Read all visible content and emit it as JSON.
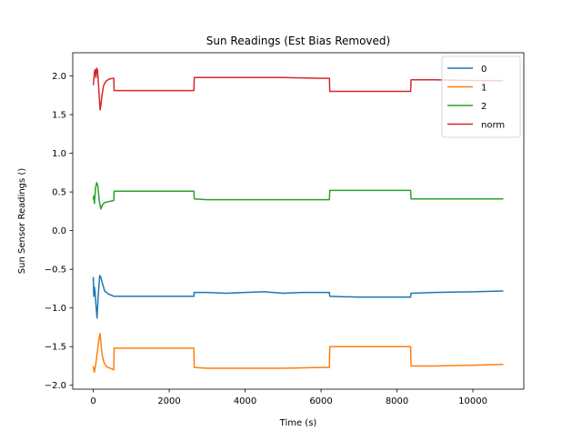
{
  "chart_data": {
    "type": "line",
    "title": "Sun Readings (Est Bias Removed)",
    "xlabel": "Time (s)",
    "ylabel": "Sun Sensor Readings ()",
    "xlim": [
      -540,
      11340
    ],
    "ylim": [
      -2.05,
      2.3
    ],
    "xticks": [
      0,
      2000,
      4000,
      6000,
      8000,
      10000
    ],
    "xtick_labels": [
      "0",
      "2000",
      "4000",
      "6000",
      "8000",
      "10000"
    ],
    "yticks": [
      -2.0,
      -1.5,
      -1.0,
      -0.5,
      0.0,
      0.5,
      1.0,
      1.5,
      2.0
    ],
    "ytick_labels": [
      "−2.0",
      "−1.5",
      "−1.0",
      "−0.5",
      "0.0",
      "0.5",
      "1.0",
      "1.5",
      "2.0"
    ],
    "grid": false,
    "legend_position": "top-right",
    "series": [
      {
        "name": "0",
        "color": "#1f77b4",
        "x": [
          0,
          15,
          30,
          50,
          70,
          100,
          130,
          170,
          200,
          240,
          300,
          400,
          500,
          540,
          560,
          1000,
          2000,
          2650,
          2660,
          3000,
          3500,
          4000,
          4500,
          5000,
          5500,
          6000,
          6220,
          6230,
          7000,
          8000,
          8360,
          8370,
          9000,
          10000,
          10800
        ],
        "y": [
          -0.6,
          -0.85,
          -0.73,
          -0.8,
          -0.95,
          -1.13,
          -0.85,
          -0.58,
          -0.6,
          -0.68,
          -0.78,
          -0.82,
          -0.84,
          -0.85,
          -0.85,
          -0.85,
          -0.85,
          -0.85,
          -0.8,
          -0.8,
          -0.81,
          -0.8,
          -0.79,
          -0.81,
          -0.8,
          -0.8,
          -0.8,
          -0.85,
          -0.86,
          -0.86,
          -0.86,
          -0.81,
          -0.8,
          -0.79,
          -0.78
        ]
      },
      {
        "name": "1",
        "color": "#ff7f0e",
        "x": [
          0,
          15,
          30,
          60,
          100,
          150,
          180,
          210,
          240,
          280,
          350,
          450,
          540,
          550,
          1000,
          2000,
          2650,
          2660,
          3000,
          4000,
          5000,
          6000,
          6220,
          6230,
          7000,
          8000,
          8360,
          8370,
          9000,
          10000,
          10800
        ],
        "y": [
          -1.75,
          -1.8,
          -1.83,
          -1.75,
          -1.6,
          -1.4,
          -1.33,
          -1.5,
          -1.62,
          -1.7,
          -1.76,
          -1.78,
          -1.8,
          -1.52,
          -1.52,
          -1.52,
          -1.52,
          -1.77,
          -1.78,
          -1.78,
          -1.78,
          -1.77,
          -1.77,
          -1.5,
          -1.5,
          -1.5,
          -1.5,
          -1.75,
          -1.75,
          -1.74,
          -1.73
        ]
      },
      {
        "name": "2",
        "color": "#2ca02c",
        "x": [
          0,
          15,
          30,
          60,
          90,
          120,
          160,
          200,
          240,
          290,
          350,
          450,
          540,
          550,
          1000,
          2000,
          2650,
          2660,
          3000,
          4000,
          5000,
          6000,
          6220,
          6230,
          7000,
          8000,
          8360,
          8370,
          9000,
          10000,
          10800
        ],
        "y": [
          0.4,
          0.45,
          0.35,
          0.55,
          0.62,
          0.58,
          0.38,
          0.28,
          0.33,
          0.36,
          0.37,
          0.38,
          0.39,
          0.51,
          0.51,
          0.51,
          0.51,
          0.41,
          0.4,
          0.4,
          0.4,
          0.4,
          0.4,
          0.52,
          0.52,
          0.52,
          0.52,
          0.41,
          0.41,
          0.41,
          0.41
        ]
      },
      {
        "name": "norm",
        "color": "#d62728",
        "x": [
          0,
          15,
          30,
          50,
          70,
          90,
          110,
          130,
          150,
          180,
          200,
          230,
          270,
          330,
          420,
          540,
          550,
          1000,
          2000,
          2650,
          2660,
          3000,
          4000,
          5000,
          6000,
          6220,
          6230,
          7000,
          8000,
          8360,
          8370,
          9000,
          10000,
          10800
        ],
        "y": [
          1.88,
          1.95,
          2.05,
          2.08,
          1.98,
          2.1,
          2.08,
          1.95,
          1.8,
          1.56,
          1.62,
          1.75,
          1.87,
          1.93,
          1.96,
          1.97,
          1.81,
          1.81,
          1.81,
          1.81,
          1.98,
          1.98,
          1.98,
          1.98,
          1.97,
          1.97,
          1.8,
          1.8,
          1.8,
          1.8,
          1.95,
          1.95,
          1.94,
          1.94
        ]
      }
    ]
  }
}
